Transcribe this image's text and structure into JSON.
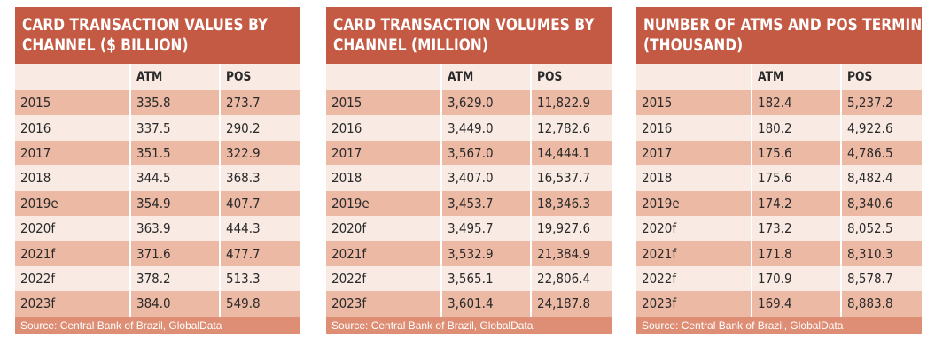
{
  "panels": [
    {
      "title_line1": "CARD TRANSACTION VALUES BY",
      "title_line2": "CHANNEL ($ BILLION)",
      "columns": [
        "",
        "ATM",
        "POS"
      ],
      "rows": [
        [
          "2015",
          "335.8",
          "273.7"
        ],
        [
          "2016",
          "337.5",
          "290.2"
        ],
        [
          "2017",
          "351.5",
          "322.9"
        ],
        [
          "2018",
          "344.5",
          "368.3"
        ],
        [
          "2019e",
          "354.9",
          "407.7"
        ],
        [
          "2020f",
          "363.9",
          "444.3"
        ],
        [
          "2021f",
          "371.6",
          "477.7"
        ],
        [
          "2022f",
          "378.2",
          "513.3"
        ],
        [
          "2023f",
          "384.0",
          "549.8"
        ]
      ],
      "source": "Source: Central Bank of Brazil, GlobalData"
    },
    {
      "title_line1": "CARD TRANSACTION VOLUMES BY",
      "title_line2": "CHANNEL (MILLION)",
      "columns": [
        "",
        "ATM",
        "POS"
      ],
      "rows": [
        [
          "2015",
          "3,629.0",
          "11,822.9"
        ],
        [
          "2016",
          "3,449.0",
          "12,782.6"
        ],
        [
          "2017",
          "3,567.0",
          "14,444.1"
        ],
        [
          "2018",
          "3,407.0",
          "16,537.7"
        ],
        [
          "2019e",
          "3,453.7",
          "18,346.3"
        ],
        [
          "2020f",
          "3,495.7",
          "19,927.6"
        ],
        [
          "2021f",
          "3,532.9",
          "21,384.9"
        ],
        [
          "2022f",
          "3,565.1",
          "22,806.4"
        ],
        [
          "2023f",
          "3,601.4",
          "24,187.8"
        ]
      ],
      "source": "Source: Central Bank of Brazil, GlobalData"
    },
    {
      "title_line1": "NUMBER OF ATMS AND POS TERMINALS",
      "title_line2": "(THOUSAND)",
      "columns": [
        "",
        "ATM",
        "POS"
      ],
      "rows": [
        [
          "2015",
          "182.4",
          "5,237.2"
        ],
        [
          "2016",
          "180.2",
          "4,922.6"
        ],
        [
          "2017",
          "175.6",
          "4,786.5"
        ],
        [
          "2018",
          "175.6",
          "8,482.4"
        ],
        [
          "2019e",
          "174.2",
          "8,340.6"
        ],
        [
          "2020f",
          "173.2",
          "8,052.5"
        ],
        [
          "2021f",
          "171.8",
          "8,310.3"
        ],
        [
          "2022f",
          "170.9",
          "8,578.7"
        ],
        [
          "2023f",
          "169.4",
          "8,883.8"
        ]
      ],
      "source": "Source: Central Bank of Brazil, GlobalData"
    }
  ],
  "colors": {
    "title_bg": "#c55a44",
    "row_light": "#f9ebe4",
    "row_dark": "#ecb9a4",
    "source_bg": "#dd8e74"
  }
}
